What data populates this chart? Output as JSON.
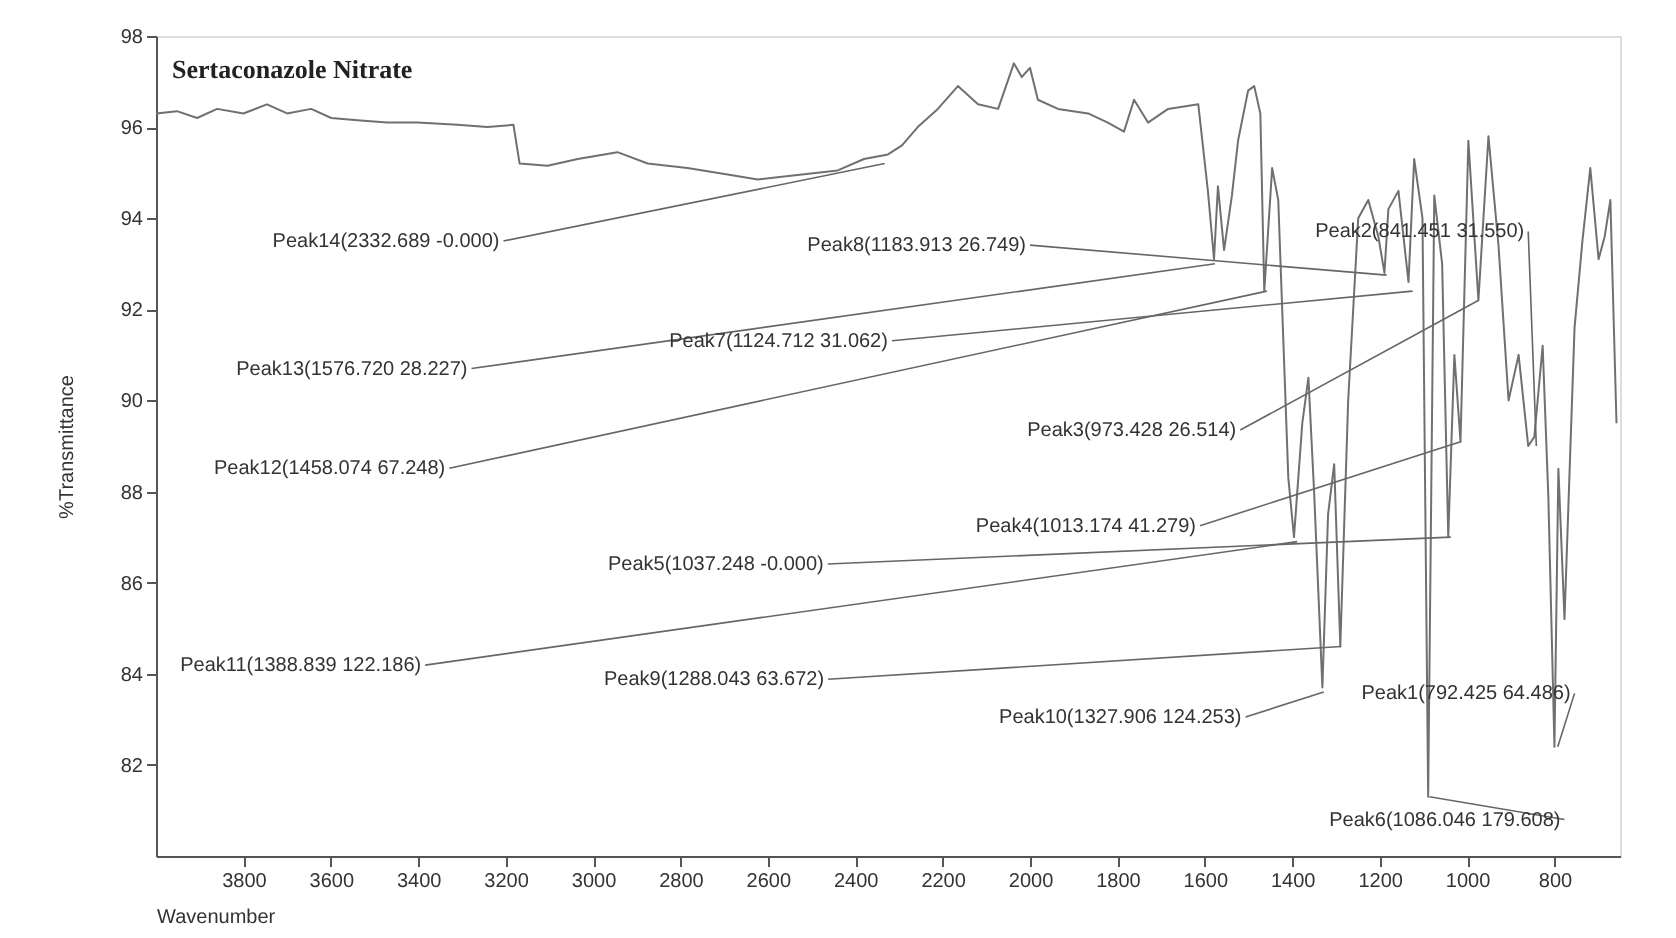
{
  "chart_data": {
    "type": "line",
    "title": "Sertaconazole Nitrate",
    "xlabel": "Wavenumber",
    "ylabel": "%Transmittance",
    "xlim": [
      4000,
      650
    ],
    "ylim": [
      80,
      98
    ],
    "xticks": [
      3800,
      3600,
      3400,
      3200,
      3000,
      2800,
      2600,
      2400,
      2200,
      2000,
      1800,
      1600,
      1400,
      1200,
      1000,
      800
    ],
    "yticks": [
      82,
      84,
      86,
      88,
      90,
      92,
      94,
      96,
      98
    ],
    "grid": false,
    "marker": "none",
    "line_style": "solid",
    "series": [
      {
        "color": "#707070",
        "x": [
          4000,
          3952,
          3906,
          3860,
          3800,
          3746,
          3700,
          3645,
          3599,
          3539,
          3471,
          3402,
          3310,
          3242,
          3182,
          3168,
          3104,
          3035,
          2944,
          2875,
          2784,
          2706,
          2623,
          2532,
          2440,
          2380,
          2325,
          2293,
          2257,
          2211,
          2165,
          2119,
          2073,
          2037,
          2019,
          2000,
          1982,
          1936,
          1867,
          1822,
          1785,
          1762,
          1730,
          1684,
          1615,
          1593,
          1579,
          1570,
          1556,
          1538,
          1524,
          1501,
          1487,
          1473,
          1464,
          1446,
          1432,
          1409,
          1396,
          1377,
          1363,
          1350,
          1331,
          1318,
          1304,
          1290,
          1272,
          1249,
          1226,
          1203,
          1189,
          1180,
          1157,
          1134,
          1121,
          1102,
          1089,
          1075,
          1057,
          1043,
          1029,
          1015,
          997,
          974,
          951,
          928,
          905,
          882,
          860,
          846,
          827,
          814,
          800,
          791,
          777,
          754,
          736,
          718,
          699,
          685,
          672,
          658
        ],
        "values": [
          96.3,
          96.35,
          96.2,
          96.4,
          96.3,
          96.5,
          96.3,
          96.4,
          96.2,
          96.15,
          96.1,
          96.1,
          96.05,
          96.0,
          96.05,
          95.2,
          95.15,
          95.3,
          95.45,
          95.2,
          95.1,
          94.98,
          94.85,
          94.95,
          95.05,
          95.3,
          95.4,
          95.6,
          96.0,
          96.4,
          96.9,
          96.5,
          96.4,
          97.4,
          97.1,
          97.3,
          96.6,
          96.4,
          96.3,
          96.1,
          95.9,
          96.6,
          96.1,
          96.4,
          96.5,
          94.6,
          93.1,
          94.7,
          93.3,
          94.5,
          95.7,
          96.8,
          96.9,
          96.3,
          92.4,
          95.1,
          94.4,
          88.3,
          87.0,
          89.5,
          90.5,
          88.0,
          83.7,
          87.5,
          88.6,
          84.6,
          90.0,
          94.0,
          94.4,
          93.6,
          92.8,
          94.2,
          94.6,
          92.6,
          95.3,
          94.0,
          81.3,
          94.5,
          93.0,
          87.0,
          91.0,
          89.1,
          95.7,
          92.2,
          95.8,
          93.4,
          90.0,
          91.0,
          89.0,
          89.2,
          91.2,
          87.9,
          82.4,
          88.5,
          85.2,
          91.6,
          93.5,
          95.1,
          93.1,
          93.6,
          94.4,
          89.5
        ]
      }
    ],
    "annotations": [
      {
        "text": "Peak14(2332.689  -0.000)",
        "x": 2332.689,
        "y": 95.2
      },
      {
        "text": "Peak8(1183.913  26.749)",
        "x": 1183.913,
        "y": 92.75
      },
      {
        "text": "Peak2(841.451  31.550)",
        "x": 841.451,
        "y": 89.0
      },
      {
        "text": "Peak7(1124.712  31.062)",
        "x": 1124.712,
        "y": 92.4
      },
      {
        "text": "Peak13(1576.720  28.227)",
        "x": 1576.72,
        "y": 93.0
      },
      {
        "text": "Peak12(1458.074  67.248)",
        "x": 1458.074,
        "y": 92.4
      },
      {
        "text": "Peak3(973.428  26.514)",
        "x": 973.428,
        "y": 92.2
      },
      {
        "text": "Peak5(1037.248  -0.000)",
        "x": 1037.248,
        "y": 87.0
      },
      {
        "text": "Peak4(1013.174  41.279)",
        "x": 1013.174,
        "y": 89.1
      },
      {
        "text": "Peak11(1388.839  122.186)",
        "x": 1388.839,
        "y": 86.9
      },
      {
        "text": "Peak9(1288.043  63.672)",
        "x": 1288.043,
        "y": 84.6
      },
      {
        "text": "Peak10(1327.906  124.253)",
        "x": 1327.906,
        "y": 83.6
      },
      {
        "text": "Peak1(792.425  64.486)",
        "x": 792.425,
        "y": 82.4
      },
      {
        "text": "Peak6(1086.046  179.608)",
        "x": 1086.046,
        "y": 81.3
      }
    ]
  }
}
